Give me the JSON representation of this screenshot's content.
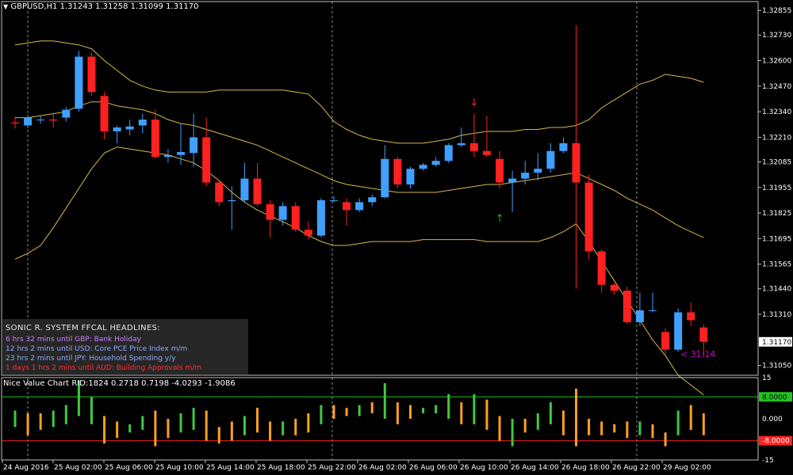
{
  "symbol_header": "GBPUSD,H1  1.31243  1.31258  1.31099  1.31170",
  "indicator_header": "Nice Value Chart RID:1824 0.2718 0.7198 -4.0293 -1.9086",
  "countdown": "< 31:14",
  "current_price_label": "1.31170",
  "headlines": {
    "title": "SONIC R. SYSTEM  FFCAL HEADLINES:",
    "items": [
      {
        "text": "6 hrs 32 mins until GBP: Bank Holiday",
        "color": "#c680ff"
      },
      {
        "text": "12 hrs 2 mins until USD: Core PCE Price Index m/m",
        "color": "#8fa8ff"
      },
      {
        "text": "23 hrs 2 mins until JPY: Household Spending y/y",
        "color": "#8fa8ff"
      },
      {
        "text": "1 days 1 hrs 2 mins until AUD: Building Approvals m/m",
        "color": "#ff3030"
      }
    ]
  },
  "colors": {
    "bull": "#3fa0ff",
    "bear": "#ff2020",
    "band": "#d9b84a",
    "grid": "#8c8c8c",
    "ind_up": "#3fc93f",
    "ind_down": "#ffa020",
    "level_pos": "#22c422",
    "level_neg": "#ff2020"
  },
  "chart_data": {
    "type": "candlestick",
    "y_ticks": [
      "1.32855",
      "1.32730",
      "1.32600",
      "1.32470",
      "1.32340",
      "1.32210",
      "1.32085",
      "1.31955",
      "1.31825",
      "1.31695",
      "1.31565",
      "1.31440",
      "1.31310",
      "1.31050"
    ],
    "y_ticks_num": [
      1.32855,
      1.3273,
      1.326,
      1.3247,
      1.3234,
      1.3221,
      1.32085,
      1.31955,
      1.31825,
      1.31695,
      1.31565,
      1.3144,
      1.3131,
      1.3105
    ],
    "x_ticks": [
      "24 Aug 2016",
      "25 Aug 02:00",
      "25 Aug 06:00",
      "25 Aug 10:00",
      "25 Aug 14:00",
      "25 Aug 18:00",
      "25 Aug 22:00",
      "26 Aug 02:00",
      "26 Aug 06:00",
      "26 Aug 10:00",
      "26 Aug 14:00",
      "26 Aug 18:00",
      "26 Aug 22:00",
      "29 Aug 02:00"
    ],
    "candles": [
      {
        "o": 1.32285,
        "h": 1.32315,
        "l": 1.32255,
        "c": 1.3228
      },
      {
        "o": 1.3227,
        "h": 1.32325,
        "l": 1.32255,
        "c": 1.3231
      },
      {
        "o": 1.323,
        "h": 1.3232,
        "l": 1.3228,
        "c": 1.323
      },
      {
        "o": 1.323,
        "h": 1.3233,
        "l": 1.3226,
        "c": 1.32295
      },
      {
        "o": 1.3231,
        "h": 1.32365,
        "l": 1.3229,
        "c": 1.3235
      },
      {
        "o": 1.32355,
        "h": 1.3265,
        "l": 1.3234,
        "c": 1.3262
      },
      {
        "o": 1.3262,
        "h": 1.3264,
        "l": 1.3242,
        "c": 1.3244
      },
      {
        "o": 1.3242,
        "h": 1.3244,
        "l": 1.322,
        "c": 1.3224
      },
      {
        "o": 1.3224,
        "h": 1.3227,
        "l": 1.3218,
        "c": 1.3226
      },
      {
        "o": 1.3225,
        "h": 1.323,
        "l": 1.3222,
        "c": 1.32265
      },
      {
        "o": 1.3227,
        "h": 1.3233,
        "l": 1.3223,
        "c": 1.323
      },
      {
        "o": 1.323,
        "h": 1.3235,
        "l": 1.321,
        "c": 1.3211
      },
      {
        "o": 1.3211,
        "h": 1.3215,
        "l": 1.3208,
        "c": 1.3212
      },
      {
        "o": 1.3212,
        "h": 1.3228,
        "l": 1.3207,
        "c": 1.32135
      },
      {
        "o": 1.3213,
        "h": 1.3233,
        "l": 1.3206,
        "c": 1.3221
      },
      {
        "o": 1.3221,
        "h": 1.3231,
        "l": 1.3196,
        "c": 1.3198
      },
      {
        "o": 1.3198,
        "h": 1.3199,
        "l": 1.3186,
        "c": 1.3188
      },
      {
        "o": 1.31885,
        "h": 1.3196,
        "l": 1.3174,
        "c": 1.3189
      },
      {
        "o": 1.3189,
        "h": 1.3208,
        "l": 1.3188,
        "c": 1.32
      },
      {
        "o": 1.32,
        "h": 1.3208,
        "l": 1.3186,
        "c": 1.3187
      },
      {
        "o": 1.3187,
        "h": 1.3189,
        "l": 1.317,
        "c": 1.3179
      },
      {
        "o": 1.3179,
        "h": 1.3188,
        "l": 1.3176,
        "c": 1.3186
      },
      {
        "o": 1.3186,
        "h": 1.3188,
        "l": 1.3173,
        "c": 1.3174
      },
      {
        "o": 1.3174,
        "h": 1.3178,
        "l": 1.3169,
        "c": 1.3171
      },
      {
        "o": 1.3171,
        "h": 1.319,
        "l": 1.317,
        "c": 1.3189
      },
      {
        "o": 1.3189,
        "h": 1.3191,
        "l": 1.3188,
        "c": 1.3189
      },
      {
        "o": 1.3188,
        "h": 1.319,
        "l": 1.3176,
        "c": 1.3184
      },
      {
        "o": 1.3184,
        "h": 1.319,
        "l": 1.3183,
        "c": 1.3188
      },
      {
        "o": 1.3188,
        "h": 1.3192,
        "l": 1.3186,
        "c": 1.31905
      },
      {
        "o": 1.31905,
        "h": 1.3217,
        "l": 1.319,
        "c": 1.321
      },
      {
        "o": 1.321,
        "h": 1.3211,
        "l": 1.3195,
        "c": 1.3197
      },
      {
        "o": 1.3197,
        "h": 1.3206,
        "l": 1.3195,
        "c": 1.3205
      },
      {
        "o": 1.3205,
        "h": 1.3208,
        "l": 1.3204,
        "c": 1.3207
      },
      {
        "o": 1.3207,
        "h": 1.3211,
        "l": 1.3206,
        "c": 1.3209
      },
      {
        "o": 1.3209,
        "h": 1.3218,
        "l": 1.3208,
        "c": 1.3217
      },
      {
        "o": 1.3217,
        "h": 1.3226,
        "l": 1.3216,
        "c": 1.3218
      },
      {
        "o": 1.3218,
        "h": 1.3233,
        "l": 1.3211,
        "c": 1.3214
      },
      {
        "o": 1.3214,
        "h": 1.3232,
        "l": 1.3211,
        "c": 1.3212
      },
      {
        "o": 1.321,
        "h": 1.3214,
        "l": 1.3195,
        "c": 1.3198
      },
      {
        "o": 1.3198,
        "h": 1.3204,
        "l": 1.3183,
        "c": 1.32
      },
      {
        "o": 1.32,
        "h": 1.3209,
        "l": 1.3197,
        "c": 1.3203
      },
      {
        "o": 1.3203,
        "h": 1.3213,
        "l": 1.3199,
        "c": 1.3205
      },
      {
        "o": 1.3205,
        "h": 1.3218,
        "l": 1.3203,
        "c": 1.3214
      },
      {
        "o": 1.3214,
        "h": 1.3221,
        "l": 1.3213,
        "c": 1.3218
      },
      {
        "o": 1.3218,
        "h": 1.3278,
        "l": 1.3144,
        "c": 1.3198
      },
      {
        "o": 1.3198,
        "h": 1.3202,
        "l": 1.3159,
        "c": 1.3163
      },
      {
        "o": 1.3163,
        "h": 1.3164,
        "l": 1.3142,
        "c": 1.3146
      },
      {
        "o": 1.3146,
        "h": 1.3147,
        "l": 1.3141,
        "c": 1.3143
      },
      {
        "o": 1.3143,
        "h": 1.3145,
        "l": 1.3126,
        "c": 1.3127
      },
      {
        "o": 1.3127,
        "h": 1.3142,
        "l": 1.3125,
        "c": 1.3133
      },
      {
        "o": 1.3133,
        "h": 1.3142,
        "l": 1.3132,
        "c": 1.3133
      },
      {
        "o": 1.3122,
        "h": 1.3124,
        "l": 1.311,
        "c": 1.3113
      },
      {
        "o": 1.3113,
        "h": 1.3134,
        "l": 1.3112,
        "c": 1.3132
      },
      {
        "o": 1.3132,
        "h": 1.3137,
        "l": 1.3125,
        "c": 1.3128
      },
      {
        "o": 1.31243,
        "h": 1.31258,
        "l": 1.31099,
        "c": 1.3117
      }
    ],
    "bb_mid": [
      1.3231,
      1.3231,
      1.3232,
      1.3233,
      1.3234,
      1.3237,
      1.3239,
      1.3239,
      1.3237,
      1.3236,
      1.3235,
      1.3233,
      1.323,
      1.3228,
      1.3227,
      1.3225,
      1.3223,
      1.3221,
      1.3219,
      1.3217,
      1.3214,
      1.3211,
      1.3208,
      1.3205,
      1.3202,
      1.3199,
      1.3197,
      1.3196,
      1.3195,
      1.3194,
      1.3193,
      1.3193,
      1.3193,
      1.3193,
      1.3194,
      1.3195,
      1.3196,
      1.3197,
      1.3197,
      1.3198,
      1.3199,
      1.32,
      1.3201,
      1.3202,
      1.3203,
      1.32,
      1.3197,
      1.3194,
      1.319,
      1.3187,
      1.3184,
      1.318,
      1.3176,
      1.3173,
      1.317
    ],
    "bb_upper": [
      1.3268,
      1.3269,
      1.327,
      1.327,
      1.3269,
      1.3268,
      1.3266,
      1.326,
      1.3255,
      1.325,
      1.3247,
      1.3245,
      1.3244,
      1.3244,
      1.3244,
      1.3244,
      1.3245,
      1.3245,
      1.3245,
      1.3245,
      1.3245,
      1.3245,
      1.3244,
      1.3243,
      1.3237,
      1.3229,
      1.3225,
      1.3222,
      1.322,
      1.3219,
      1.3218,
      1.3218,
      1.3218,
      1.3219,
      1.322,
      1.3222,
      1.3223,
      1.3224,
      1.3224,
      1.3224,
      1.3225,
      1.3225,
      1.3226,
      1.3226,
      1.3227,
      1.323,
      1.3236,
      1.324,
      1.3244,
      1.3248,
      1.325,
      1.3253,
      1.3252,
      1.3251,
      1.3249
    ],
    "bb_lower": [
      1.3159,
      1.3162,
      1.3166,
      1.3175,
      1.3185,
      1.3195,
      1.3205,
      1.3213,
      1.3216,
      1.3215,
      1.3214,
      1.3213,
      1.3212,
      1.321,
      1.3208,
      1.3204,
      1.3199,
      1.3193,
      1.3188,
      1.3184,
      1.3181,
      1.3178,
      1.3175,
      1.3171,
      1.3168,
      1.3166,
      1.3166,
      1.3167,
      1.3168,
      1.3168,
      1.3168,
      1.3168,
      1.3169,
      1.3169,
      1.3169,
      1.3169,
      1.3169,
      1.3168,
      1.3168,
      1.3168,
      1.3168,
      1.3168,
      1.317,
      1.3173,
      1.3177,
      1.3168,
      1.3158,
      1.3148,
      1.3138,
      1.3128,
      1.3118,
      1.311,
      1.31,
      1.3095,
      1.309
    ],
    "arrows": [
      {
        "index": 36,
        "dir": "down",
        "price": 1.3237
      },
      {
        "index": 38,
        "dir": "up",
        "price": 1.3178
      }
    ],
    "indicator": {
      "y_ticks": [
        "15",
        "8.0000",
        "0.000",
        "-8.0000",
        "-15"
      ],
      "levels": [
        8,
        0,
        -8
      ],
      "ylim": [
        -15,
        15
      ],
      "bars": [
        {
          "lo": -3,
          "hi": 3,
          "up": true
        },
        {
          "lo": -6,
          "hi": 2,
          "up": false
        },
        {
          "lo": -4,
          "hi": 2,
          "up": false
        },
        {
          "lo": -3,
          "hi": 3,
          "up": true
        },
        {
          "lo": -2,
          "hi": 5,
          "up": true
        },
        {
          "lo": 1,
          "hi": 14,
          "up": true
        },
        {
          "lo": -2,
          "hi": 8,
          "up": true
        },
        {
          "lo": -9,
          "hi": 1,
          "up": false
        },
        {
          "lo": -7,
          "hi": -1,
          "up": false
        },
        {
          "lo": -5,
          "hi": -2,
          "up": true
        },
        {
          "lo": -4,
          "hi": 1,
          "up": true
        },
        {
          "lo": -10,
          "hi": 3,
          "up": false
        },
        {
          "lo": -7,
          "hi": 0,
          "up": false
        },
        {
          "lo": -5,
          "hi": 2,
          "up": true
        },
        {
          "lo": -4,
          "hi": 4,
          "up": true
        },
        {
          "lo": -8,
          "hi": 3,
          "up": false
        },
        {
          "lo": -9,
          "hi": -3,
          "up": false
        },
        {
          "lo": -8,
          "hi": -1,
          "up": false
        },
        {
          "lo": -6,
          "hi": 1,
          "up": true
        },
        {
          "lo": -5,
          "hi": 4,
          "up": false
        },
        {
          "lo": -8,
          "hi": -1,
          "up": false
        },
        {
          "lo": -6,
          "hi": -1,
          "up": true
        },
        {
          "lo": -6,
          "hi": 0,
          "up": false
        },
        {
          "lo": -5,
          "hi": 2,
          "up": false
        },
        {
          "lo": -2,
          "hi": 5,
          "up": true
        },
        {
          "lo": 0,
          "hi": 5,
          "up": false
        },
        {
          "lo": 1,
          "hi": 4,
          "up": false
        },
        {
          "lo": 1,
          "hi": 5,
          "up": true
        },
        {
          "lo": 2,
          "hi": 6,
          "up": false
        },
        {
          "lo": 0,
          "hi": 13,
          "up": true
        },
        {
          "lo": -2,
          "hi": 6,
          "up": false
        },
        {
          "lo": 0,
          "hi": 5,
          "up": false
        },
        {
          "lo": 2,
          "hi": 4,
          "up": true
        },
        {
          "lo": 2,
          "hi": 5,
          "up": true
        },
        {
          "lo": 0,
          "hi": 9,
          "up": true
        },
        {
          "lo": -2,
          "hi": 6,
          "up": false
        },
        {
          "lo": -2,
          "hi": 9,
          "up": true
        },
        {
          "lo": -4,
          "hi": 7,
          "up": false
        },
        {
          "lo": -8,
          "hi": 1,
          "up": false
        },
        {
          "lo": -10,
          "hi": 0,
          "up": true
        },
        {
          "lo": -5,
          "hi": 0,
          "up": false
        },
        {
          "lo": -4,
          "hi": 2,
          "up": true
        },
        {
          "lo": -2,
          "hi": 6,
          "up": true
        },
        {
          "lo": -6,
          "hi": 3,
          "up": false
        },
        {
          "lo": -10,
          "hi": 11,
          "up": false
        },
        {
          "lo": -6,
          "hi": 0,
          "up": false
        },
        {
          "lo": -6,
          "hi": -1,
          "up": false
        },
        {
          "lo": -5,
          "hi": -2,
          "up": false
        },
        {
          "lo": -7,
          "hi": -1,
          "up": false
        },
        {
          "lo": -6,
          "hi": -1,
          "up": true
        },
        {
          "lo": -7,
          "hi": -2,
          "up": false
        },
        {
          "lo": -10,
          "hi": -5,
          "up": false
        },
        {
          "lo": -6,
          "hi": 3,
          "up": true
        },
        {
          "lo": -4,
          "hi": 5,
          "up": false
        },
        {
          "lo": -6,
          "hi": 2,
          "up": false
        }
      ]
    }
  }
}
